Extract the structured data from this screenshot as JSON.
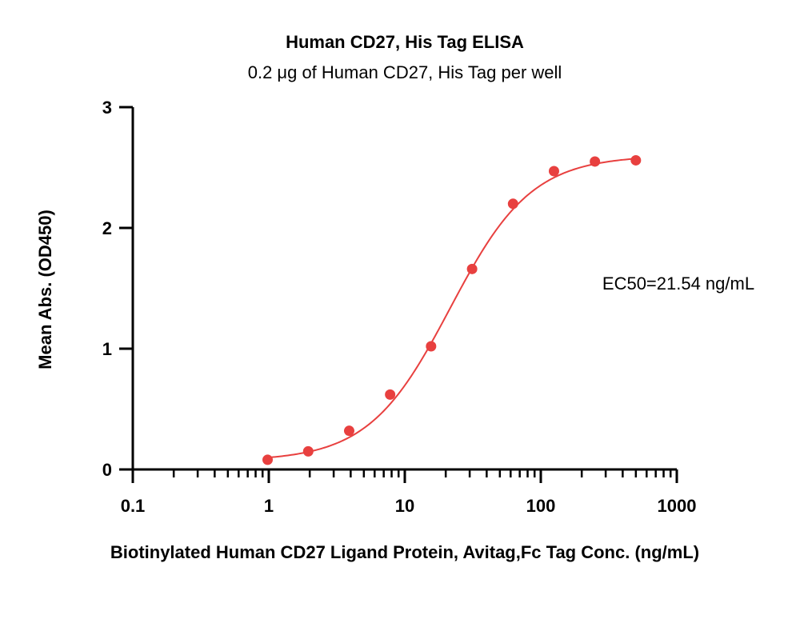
{
  "chart_data": {
    "type": "scatter",
    "title": "Human CD27, His Tag ELISA",
    "subtitle": "0.2 μg of Human CD27, His Tag per well",
    "xlabel": "Biotinylated Human CD27 Ligand Protein, Avitag,Fc Tag Conc. (ng/mL)",
    "ylabel": "Mean Abs. (OD450)",
    "xscale": "log",
    "xlim": [
      0.1,
      1000
    ],
    "ylim": [
      0,
      3
    ],
    "xticks": [
      "0.1",
      "1",
      "10",
      "100",
      "1000"
    ],
    "yticks": [
      "0",
      "1",
      "2",
      "3"
    ],
    "grid": false,
    "series": [
      {
        "color": "#e8403f",
        "x": [
          0.98,
          1.95,
          3.9,
          7.8,
          15.6,
          31.25,
          62.5,
          125,
          250,
          500
        ],
        "y": [
          0.08,
          0.15,
          0.32,
          0.62,
          1.02,
          1.66,
          2.2,
          2.47,
          2.55,
          2.56
        ]
      }
    ],
    "fit_curve": {
      "type": "4PL",
      "color": "#e8403f",
      "bottom": 0.07,
      "top": 2.6,
      "ec50": 21.54,
      "hill": 1.45
    },
    "annotations": [
      {
        "text": "EC50=21.54 ng/mL"
      }
    ]
  }
}
